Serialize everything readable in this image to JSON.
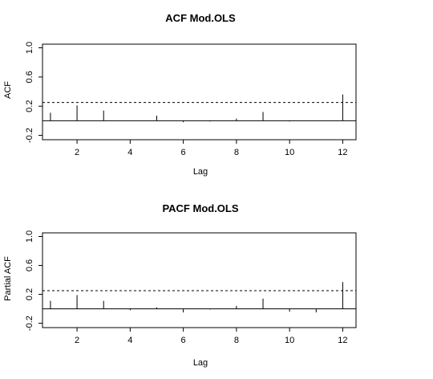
{
  "chart_data": [
    {
      "type": "bar",
      "title": "ACF Mod.OLS",
      "xlabel": "Lag",
      "ylabel": "ACF",
      "xlim": [
        0.7,
        12.5
      ],
      "ylim": [
        -0.26,
        1.05
      ],
      "xticks": [
        "2",
        "4",
        "6",
        "8",
        "10",
        "12"
      ],
      "yticks": [
        "-0.2",
        "0.2",
        "0.6",
        "1.0"
      ],
      "x": [
        1,
        2,
        3,
        4,
        5,
        6,
        7,
        8,
        9,
        10,
        11,
        12
      ],
      "values": [
        0.11,
        0.21,
        0.14,
        0.0,
        0.07,
        -0.02,
        -0.01,
        0.03,
        0.12,
        -0.01,
        0.0,
        0.36
      ],
      "conf_level": 0.25,
      "zero_line": true,
      "grid": false
    },
    {
      "type": "bar",
      "title": "PACF Mod.OLS",
      "xlabel": "Lag",
      "ylabel": "Partial ACF",
      "xlim": [
        0.7,
        12.5
      ],
      "ylim": [
        -0.26,
        1.05
      ],
      "xticks": [
        "2",
        "4",
        "6",
        "8",
        "10",
        "12"
      ],
      "yticks": [
        "-0.2",
        "0.2",
        "0.6",
        "1.0"
      ],
      "x": [
        1,
        2,
        3,
        4,
        5,
        6,
        7,
        8,
        9,
        10,
        11,
        12
      ],
      "values": [
        0.11,
        0.19,
        0.11,
        -0.02,
        0.02,
        -0.05,
        -0.01,
        0.04,
        0.14,
        -0.04,
        -0.05,
        0.37
      ],
      "conf_level": 0.25,
      "zero_line": true,
      "grid": false
    }
  ]
}
